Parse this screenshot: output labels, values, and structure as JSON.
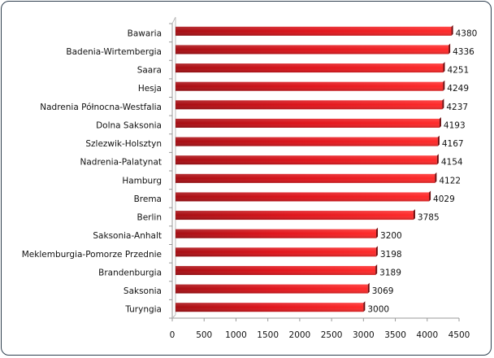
{
  "chart_data": {
    "type": "bar",
    "orientation": "horizontal",
    "style": "3d",
    "categories": [
      "Bawaria",
      "Badenia-Wirtembergia",
      "Saara",
      "Hesja",
      "Nadrenia Północna-Westfalia",
      "Dolna Saksonia",
      "Szlezwik-Holsztyn",
      "Nadrenia-Palatynat",
      "Hamburg",
      "Brema",
      "Berlin",
      "Saksonia-Anhalt",
      "Meklemburgia-Pomorze Przednie",
      "Brandenburgia",
      "Saksonia",
      "Turyngia"
    ],
    "values": [
      4380,
      4336,
      4251,
      4249,
      4237,
      4193,
      4167,
      4154,
      4122,
      4029,
      3785,
      3200,
      3198,
      3189,
      3069,
      3000
    ],
    "value_labels": [
      "4380",
      "4336",
      "4251",
      "4249",
      "4237",
      "4193",
      "4167",
      "4154",
      "4122",
      "4029",
      "3785",
      "3200",
      "3198",
      "3189",
      "3069",
      "3000"
    ],
    "xlim": [
      0,
      4500
    ],
    "xticks": [
      "0",
      "500",
      "1000",
      "1500",
      "2000",
      "2500",
      "3000",
      "3500",
      "4000",
      "4500"
    ],
    "title": "",
    "xlabel": "",
    "ylabel": "",
    "grid": false,
    "legend": "none",
    "colors": {
      "bar": "#e8141c",
      "bar_dark": "#a50d12",
      "axis": "#888888"
    }
  }
}
